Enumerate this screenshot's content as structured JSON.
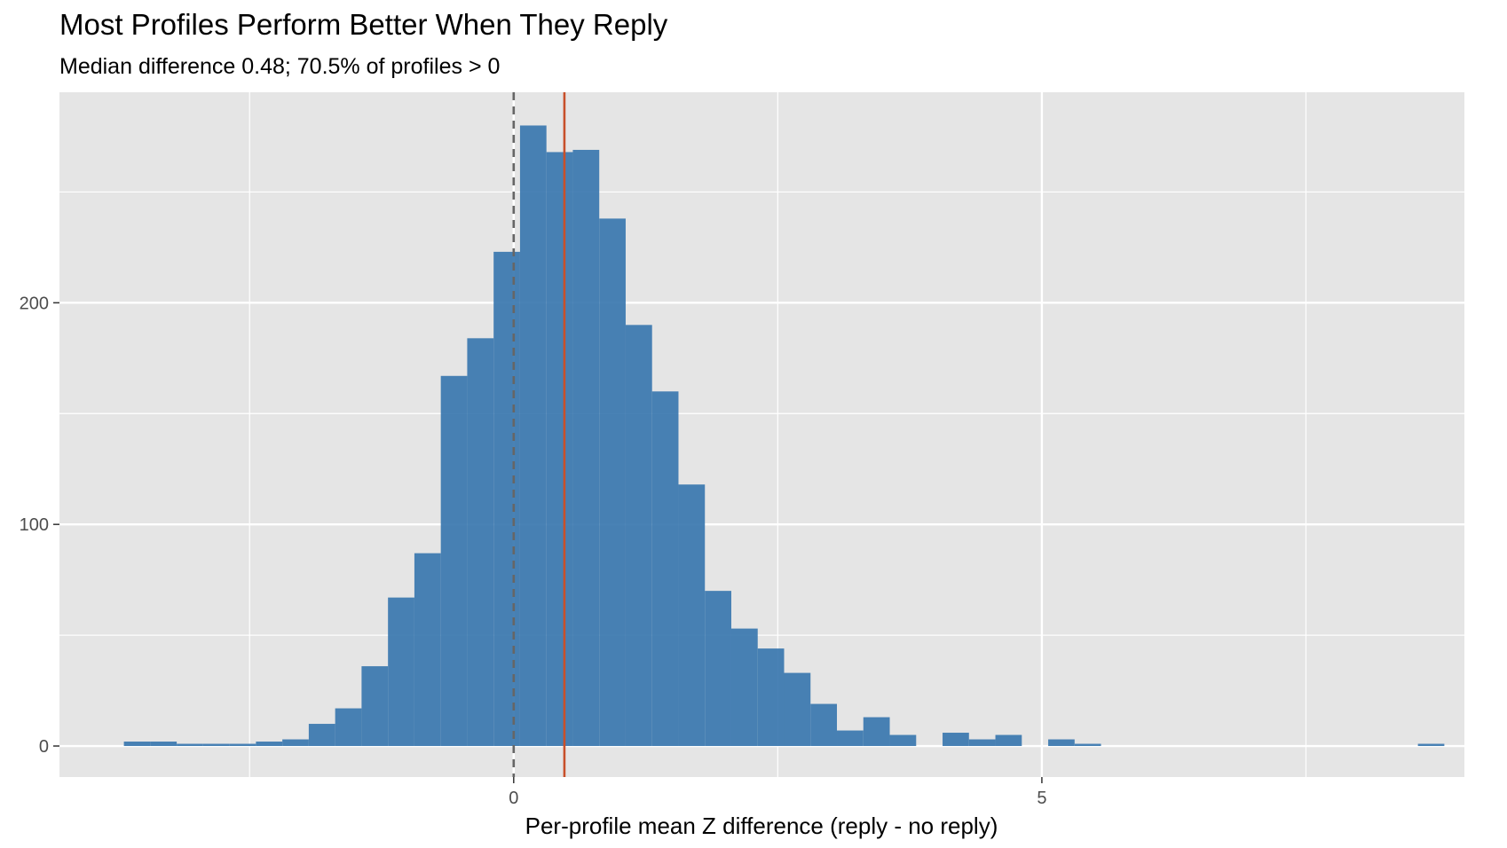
{
  "chart_data": {
    "type": "histogram",
    "title": "Most Profiles Perform Better When They Reply",
    "subtitle": "Median difference 0.48; 70.5% of profiles > 0",
    "xlabel": "Per-profile mean Z difference (reply - no reply)",
    "ylabel": "",
    "xlim": [
      -4.3,
      9.0
    ],
    "ylim": [
      -14,
      295
    ],
    "x_ticks": [
      0,
      5
    ],
    "x_tick_labels": [
      "0",
      "5"
    ],
    "x_minor_ticks": [
      -2.5,
      2.5,
      7.5
    ],
    "y_ticks": [
      0,
      100,
      200
    ],
    "y_tick_labels": [
      "0",
      "100",
      "200"
    ],
    "y_minor_ticks": [
      50,
      150,
      250
    ],
    "bin_width": 0.25,
    "bins": [
      {
        "x0": -3.69,
        "count": 2
      },
      {
        "x0": -3.44,
        "count": 2
      },
      {
        "x0": -3.19,
        "count": 1
      },
      {
        "x0": -2.94,
        "count": 1
      },
      {
        "x0": -2.69,
        "count": 1
      },
      {
        "x0": -2.44,
        "count": 2
      },
      {
        "x0": -2.19,
        "count": 3
      },
      {
        "x0": -1.94,
        "count": 10
      },
      {
        "x0": -1.69,
        "count": 17
      },
      {
        "x0": -1.44,
        "count": 36
      },
      {
        "x0": -1.19,
        "count": 67
      },
      {
        "x0": -0.94,
        "count": 87
      },
      {
        "x0": -0.69,
        "count": 167
      },
      {
        "x0": -0.44,
        "count": 184
      },
      {
        "x0": -0.19,
        "count": 223
      },
      {
        "x0": 0.06,
        "count": 280
      },
      {
        "x0": 0.31,
        "count": 268
      },
      {
        "x0": 0.56,
        "count": 269
      },
      {
        "x0": 0.81,
        "count": 238
      },
      {
        "x0": 1.06,
        "count": 190
      },
      {
        "x0": 1.31,
        "count": 160
      },
      {
        "x0": 1.56,
        "count": 118
      },
      {
        "x0": 1.81,
        "count": 70
      },
      {
        "x0": 2.06,
        "count": 53
      },
      {
        "x0": 2.31,
        "count": 44
      },
      {
        "x0": 2.56,
        "count": 33
      },
      {
        "x0": 2.81,
        "count": 19
      },
      {
        "x0": 3.06,
        "count": 7
      },
      {
        "x0": 3.31,
        "count": 13
      },
      {
        "x0": 3.56,
        "count": 5
      },
      {
        "x0": 3.81,
        "count": 0
      },
      {
        "x0": 4.06,
        "count": 6
      },
      {
        "x0": 4.31,
        "count": 3
      },
      {
        "x0": 4.56,
        "count": 5
      },
      {
        "x0": 4.81,
        "count": 0
      },
      {
        "x0": 5.06,
        "count": 3
      },
      {
        "x0": 5.31,
        "count": 1
      },
      {
        "x0": 8.56,
        "count": 1
      }
    ],
    "reference_lines": [
      {
        "type": "vertical",
        "x": 0,
        "style": "dashed",
        "color": "#666666"
      },
      {
        "type": "vertical",
        "x": 0.48,
        "style": "solid",
        "color": "#C8502A"
      }
    ],
    "grid": true,
    "colors": {
      "bar": "#3A77AF",
      "panel": "#E5E5E5",
      "grid": "#FFFFFF"
    }
  }
}
